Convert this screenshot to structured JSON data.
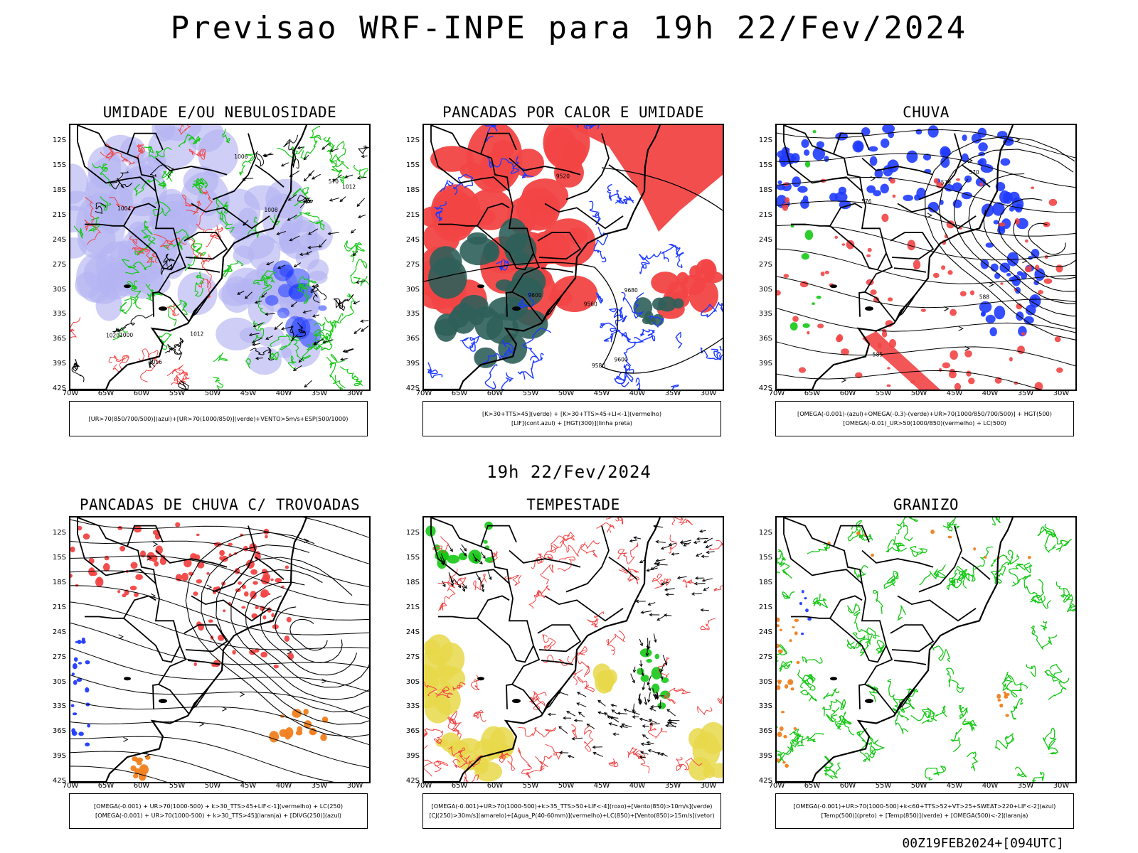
{
  "header": {
    "title": "Previsao WRF-INPE  para 19h 22/Fev/2024",
    "mid_title": "19h 22/Fev/2024",
    "footer_stamp": "00Z19FEB2024+[094UTC]"
  },
  "axes": {
    "lat_labels": [
      "12S",
      "15S",
      "18S",
      "21S",
      "24S",
      "27S",
      "30S",
      "33S",
      "36S",
      "39S",
      "42S"
    ],
    "lon_labels": [
      "70W",
      "65W",
      "60W",
      "55W",
      "50W",
      "45W",
      "40W",
      "35W",
      "30W"
    ]
  },
  "colors": {
    "blue": "#1f3bff",
    "light_blue": "#b3b3f2",
    "green": "#16c816",
    "red": "#f24444",
    "dark_teal": "#2f5f5a",
    "yellow": "#e8d84a",
    "orange": "#f0801e",
    "black": "#000000"
  },
  "panels": [
    {
      "id": "umidade",
      "title": "UMIDADE E/OU NEBULOSIDADE",
      "legend": [
        "[UR>70(850/700/500)](azul)+[UR>70(1000/850)](verde)+VENTO>5m/s+ESP(500/1000)"
      ],
      "contour_labels": [
        "1012",
        "1008",
        "1006",
        "1004",
        "1000",
        "1020",
        "1016",
        "1012",
        "570"
      ]
    },
    {
      "id": "pancadas-calor",
      "title": "PANCADAS POR CALOR E UMIDADE",
      "legend": [
        "[K>30+TTS>45](verde) + [K>30+TTS>45+LI<-1](vermelho)",
        "[LIF](cont.azul) + [HGT(300)](linha preta)"
      ],
      "contour_labels": [
        "9600",
        "9520",
        "9680",
        "9560",
        "9600",
        "9580"
      ]
    },
    {
      "id": "chuva",
      "title": "CHUVA",
      "legend": [
        "[OMEGA(-0.001)-(azul)+OMEGA(-0.3)-(verde)+UR>70(1000/850/700/500)] + HGT(500)",
        "[OMEGA(-0.01)_UR>50(1000/850)(vermelho) + LC(500)"
      ],
      "contour_labels": [
        "588",
        "579",
        "576",
        "585",
        "570"
      ]
    },
    {
      "id": "trovoadas",
      "title": "PANCADAS DE CHUVA C/ TROVOADAS",
      "legend": [
        "[OMEGA(-0.001) + UR>70(1000-500) + k>30_TTS>45+LIF<-1](vermelho) + LC(250)",
        "[OMEGA(-0.001) + UR>70(1000-500) + k>30_TTS>45](laranja) + [DIVG(250)](azul)"
      ],
      "contour_labels": []
    },
    {
      "id": "tempestade",
      "title": "TEMPESTADE",
      "legend": [
        "[OMEGA(-0.001)+UR>70(1000-500)+k>35_TTS>50+LIF<-4](roxo)+[Vento(850)>10m/s](verde)",
        "[CJ(250)>30m/s](amarelo)+[Agua_P(40-60mm)](vermelho)+LC(850)+[Vento(850)>15m/s](vetor)"
      ],
      "contour_labels": []
    },
    {
      "id": "granizo",
      "title": "GRANIZO",
      "legend": [
        "[OMEGA(-0.001)+UR>70(1000-500)+k<60+TTS>52+VT>25+SWEAT>220+LIF<-2](azul)",
        "[Temp(500)](preto) + [Temp(850)](verde) + [OMEGA(500)<-2](laranja)"
      ],
      "contour_labels": []
    }
  ]
}
